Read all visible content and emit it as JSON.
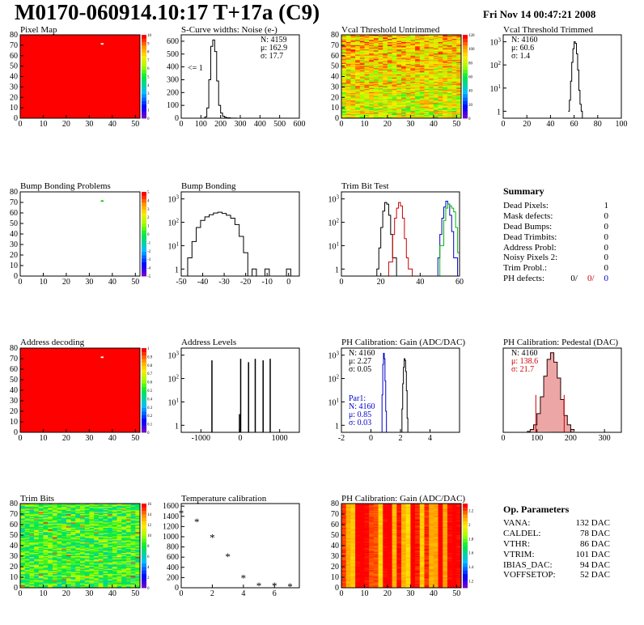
{
  "header": {
    "title": "M0170-060914.10:17 T+17a (C9)",
    "date": "Fri Nov 14 00:47:21 2008"
  },
  "summary": {
    "title": "Summary",
    "rows": [
      {
        "label": "Dead Pixels:",
        "value": "1"
      },
      {
        "label": "Mask defects:",
        "value": "0"
      },
      {
        "label": "Dead Bumps:",
        "value": "0"
      },
      {
        "label": "Dead Trimbits:",
        "value": "0"
      },
      {
        "label": "Address Probl:",
        "value": "0"
      },
      {
        "label": "Noisy Pixels 2:",
        "value": "0"
      },
      {
        "label": "Trim Probl.:",
        "value": "0"
      }
    ],
    "ph_label": "PH defects:",
    "ph_values": [
      {
        "value": "0/",
        "color": "#000000"
      },
      {
        "value": "0/",
        "color": "#cc0000"
      },
      {
        "value": "0",
        "color": "#0000cc"
      }
    ]
  },
  "op_parameters": {
    "title": "Op. Parameters",
    "rows": [
      {
        "label": "VANA:",
        "value": "132 DAC"
      },
      {
        "label": "CALDEL:",
        "value": "78 DAC"
      },
      {
        "label": "VTHR:",
        "value": "86 DAC"
      },
      {
        "label": "VTRIM:",
        "value": "101 DAC"
      },
      {
        "label": "IBIAS_DAC:",
        "value": "94 DAC"
      },
      {
        "label": "VOFFSETOP:",
        "value": "52 DAC"
      }
    ]
  },
  "colors": {
    "hist_black": "#000000",
    "hist_red": "#cc0000",
    "hist_blue": "#0000cc",
    "hist_green": "#00bb00",
    "map_red": "#ff0000",
    "pedestal_fill": "#cc0000"
  },
  "chart_data": [
    {
      "id": "pixel_map",
      "type": "heatmap",
      "title": "Pixel Map",
      "xlim": [
        0,
        52
      ],
      "ylim": [
        0,
        80
      ],
      "x_ticks": [
        0,
        10,
        20,
        30,
        40,
        50
      ],
      "y_ticks": [
        0,
        10,
        20,
        30,
        40,
        50,
        60,
        70,
        80
      ],
      "zlim": [
        0,
        10
      ],
      "z_ticks": [
        0,
        1,
        2,
        3,
        4,
        5,
        6,
        7,
        8,
        9,
        10
      ],
      "uniform_value": 10,
      "pattern": "uniform",
      "outliers": [
        {
          "col": 35,
          "row": 72,
          "value": 0
        }
      ]
    },
    {
      "id": "scurve_noise",
      "type": "line",
      "title": "S-Curve widths: Noise (e-)",
      "xlim": [
        0,
        600
      ],
      "ylim": [
        0,
        650
      ],
      "x_ticks": [
        0,
        100,
        200,
        300,
        400,
        500,
        600
      ],
      "y_ticks": [
        0,
        100,
        200,
        300,
        400,
        500,
        600
      ],
      "log_y": false,
      "stats": [
        "N: 4159",
        "μ: 162.9",
        "σ: 17.7"
      ],
      "annotation": "<= 1",
      "series": [
        {
          "color": "#000000",
          "x": [
            100,
            120,
            130,
            140,
            150,
            160,
            170,
            180,
            190,
            200,
            210,
            220,
            230,
            250,
            270,
            280
          ],
          "y": [
            0,
            10,
            80,
            300,
            560,
            610,
            520,
            290,
            100,
            40,
            15,
            8,
            3,
            1,
            1,
            0
          ]
        }
      ]
    },
    {
      "id": "vcal_untrimmed",
      "type": "heatmap",
      "title": "Vcal Threshold Untrimmed",
      "xlim": [
        0,
        52
      ],
      "ylim": [
        0,
        80
      ],
      "x_ticks": [
        0,
        10,
        20,
        30,
        40,
        50
      ],
      "y_ticks": [
        0,
        10,
        20,
        30,
        40,
        50,
        60,
        70,
        80
      ],
      "zlim": [
        0,
        120
      ],
      "z_ticks": [
        0,
        20,
        40,
        60,
        80,
        100,
        120
      ],
      "pattern": "noisy"
    },
    {
      "id": "vcal_trimmed",
      "type": "line",
      "title": "Vcal Threshold Trimmed",
      "xlim": [
        0,
        100
      ],
      "ylim": [
        0.5,
        2000
      ],
      "x_ticks": [
        0,
        20,
        40,
        60,
        80,
        100
      ],
      "y_ticks": [
        1,
        10,
        100,
        1000
      ],
      "log_y": true,
      "stats": [
        "N: 4160",
        "μ: 60.6",
        "σ: 1.4"
      ],
      "series": [
        {
          "color": "#000000",
          "x": [
            55,
            56,
            57,
            58,
            59,
            60,
            61,
            62,
            63,
            64,
            65,
            66,
            67
          ],
          "y": [
            1,
            3,
            20,
            130,
            500,
            1000,
            850,
            300,
            60,
            8,
            2,
            1,
            0.5
          ]
        }
      ]
    },
    {
      "id": "bump_problems",
      "type": "heatmap",
      "title": "Bump Bonding Problems",
      "xlim": [
        0,
        52
      ],
      "ylim": [
        0,
        80
      ],
      "x_ticks": [
        0,
        10,
        20,
        30,
        40,
        50
      ],
      "y_ticks": [
        0,
        10,
        20,
        30,
        40,
        50,
        60,
        70,
        80
      ],
      "zlim": [
        -5,
        5
      ],
      "z_ticks": [
        -5,
        -4,
        -3,
        -2,
        -1,
        0,
        1,
        2,
        3,
        4,
        5
      ],
      "pattern": "empty",
      "outliers": [
        {
          "col": 35,
          "row": 72,
          "value": 1
        }
      ]
    },
    {
      "id": "bump_bonding",
      "type": "line",
      "title": "Bump Bonding",
      "xlim": [
        -50,
        5
      ],
      "ylim": [
        0.5,
        2000
      ],
      "x_ticks": [
        -50,
        -40,
        -30,
        -20,
        -10,
        0
      ],
      "y_ticks": [
        1,
        10,
        100,
        1000
      ],
      "log_y": true,
      "series": [
        {
          "color": "#000000",
          "x": [
            -49,
            -47,
            -45,
            -43,
            -41,
            -39,
            -37,
            -35,
            -33,
            -31,
            -29,
            -27,
            -25,
            -23,
            -21,
            -19,
            -17,
            -15,
            -13,
            -11,
            -9,
            -7,
            -5,
            -3,
            -1,
            1
          ],
          "y": [
            0.5,
            3,
            15,
            60,
            120,
            170,
            210,
            250,
            270,
            240,
            200,
            150,
            80,
            25,
            5,
            0.5,
            1,
            0.5,
            0.5,
            1,
            0.5,
            0.5,
            0.5,
            0.5,
            1,
            0.5
          ]
        }
      ]
    },
    {
      "id": "trim_bit_test",
      "type": "line",
      "title": "Trim Bit Test",
      "xlim": [
        0,
        60
      ],
      "ylim": [
        0.5,
        2000
      ],
      "x_ticks": [
        0,
        20,
        40,
        60
      ],
      "y_ticks": [
        1,
        10,
        100,
        1000
      ],
      "log_y": true,
      "series": [
        {
          "color": "#000000",
          "x": [
            16,
            18,
            19,
            20,
            21,
            22,
            23,
            24,
            25,
            26,
            28
          ],
          "y": [
            0.5,
            1,
            8,
            60,
            300,
            700,
            600,
            200,
            30,
            3,
            0.5
          ]
        },
        {
          "color": "#cc0000",
          "x": [
            22,
            24,
            26,
            27,
            28,
            29,
            30,
            31,
            32,
            33,
            34,
            36
          ],
          "y": [
            0.5,
            2,
            30,
            150,
            400,
            700,
            500,
            150,
            20,
            3,
            1,
            0.5
          ]
        },
        {
          "color": "#0000cc",
          "x": [
            47,
            49,
            50,
            51,
            52,
            53,
            54,
            55,
            56,
            57,
            59
          ],
          "y": [
            0.5,
            3,
            30,
            150,
            450,
            800,
            600,
            200,
            40,
            3,
            0.5
          ]
        },
        {
          "color": "#00bb00",
          "x": [
            48,
            50,
            52,
            53,
            54,
            55,
            56,
            57,
            58,
            59,
            60
          ],
          "y": [
            0.5,
            10,
            120,
            400,
            600,
            500,
            400,
            280,
            60,
            5,
            0.5
          ]
        }
      ]
    },
    {
      "id": "address_decoding",
      "type": "heatmap",
      "title": "Address decoding",
      "xlim": [
        0,
        52
      ],
      "ylim": [
        0,
        80
      ],
      "x_ticks": [
        0,
        10,
        20,
        30,
        40,
        50
      ],
      "y_ticks": [
        0,
        10,
        20,
        30,
        40,
        50,
        60,
        70,
        80
      ],
      "zlim": [
        0,
        1
      ],
      "z_ticks": [
        0,
        0.1,
        0.2,
        0.3,
        0.4,
        0.5,
        0.6,
        0.7,
        0.8,
        0.9,
        1
      ],
      "uniform_value": 1,
      "pattern": "uniform",
      "outliers": [
        {
          "col": 35,
          "row": 72,
          "value": 0
        }
      ]
    },
    {
      "id": "address_levels",
      "type": "line",
      "title": "Address Levels",
      "xlim": [
        -1500,
        1500
      ],
      "ylim": [
        0.5,
        2000
      ],
      "x_ticks": [
        -1000,
        0,
        1000
      ],
      "y_ticks": [
        1,
        10,
        100,
        1000
      ],
      "log_y": true,
      "spikes": [
        {
          "x": -720,
          "y": 600
        },
        {
          "x": -20,
          "y": 3
        },
        {
          "x": 10,
          "y": 700
        },
        {
          "x": 210,
          "y": 500
        },
        {
          "x": 380,
          "y": 700
        },
        {
          "x": 580,
          "y": 600
        },
        {
          "x": 760,
          "y": 700
        }
      ]
    },
    {
      "id": "ph_gain",
      "type": "line",
      "title": "PH Calibration: Gain (ADC/DAC)",
      "xlim": [
        -2,
        6
      ],
      "ylim": [
        0.5,
        2000
      ],
      "x_ticks": [
        -2,
        0,
        2,
        4
      ],
      "y_ticks": [
        1,
        10,
        100,
        1000
      ],
      "log_y": true,
      "stats": [
        "N: 4160",
        "μ: 2.27",
        "σ: 0.05"
      ],
      "stats_blue": [
        "Par1:",
        "N: 4160",
        "μ: 0.85",
        "σ: 0.03"
      ],
      "series": [
        {
          "color": "#000000",
          "x": [
            2.05,
            2.1,
            2.15,
            2.2,
            2.25,
            2.3,
            2.35,
            2.4,
            2.45,
            2.5
          ],
          "y": [
            0.5,
            5,
            60,
            300,
            700,
            600,
            200,
            30,
            2,
            0.5
          ]
        },
        {
          "color": "#0000cc",
          "x": [
            0.7,
            0.75,
            0.8,
            0.85,
            0.9,
            0.95,
            1.0,
            1.05
          ],
          "y": [
            0.5,
            20,
            400,
            1200,
            700,
            80,
            4,
            0.5
          ]
        }
      ]
    },
    {
      "id": "ph_pedestal",
      "type": "line",
      "title": "PH Calibration: Pedestal (DAC)",
      "xlim": [
        0,
        350
      ],
      "ylim": [
        0,
        90
      ],
      "x_ticks": [
        0,
        100,
        200,
        300
      ],
      "y_ticks": [],
      "log_y": false,
      "stats": [
        "N: 4160"
      ],
      "stats_red": [
        "μ: 138.6",
        "σ: 21.7"
      ],
      "series": [
        {
          "color": "#000000",
          "x": [
            70,
            80,
            90,
            100,
            110,
            120,
            130,
            140,
            150,
            160,
            170,
            180,
            190,
            200,
            210
          ],
          "y": [
            1,
            3,
            8,
            20,
            38,
            60,
            78,
            85,
            75,
            58,
            35,
            18,
            8,
            3,
            1
          ]
        }
      ],
      "markers": [
        {
          "x": 96.6,
          "y": 40
        },
        {
          "x": 180.6,
          "y": 40
        }
      ]
    },
    {
      "id": "trim_bits",
      "type": "heatmap",
      "title": "Trim Bits",
      "xlim": [
        0,
        52
      ],
      "ylim": [
        0,
        80
      ],
      "x_ticks": [
        0,
        10,
        20,
        30,
        40,
        50
      ],
      "y_ticks": [
        0,
        10,
        20,
        30,
        40,
        50,
        60,
        70,
        80
      ],
      "zlim": [
        0,
        16
      ],
      "z_ticks": [
        0,
        2,
        4,
        6,
        8,
        10,
        12,
        14,
        16
      ],
      "pattern": "green_noise"
    },
    {
      "id": "temp_calibration",
      "type": "scatter",
      "title": "Temperature calibration",
      "xlim": [
        0,
        7.6
      ],
      "ylim": [
        0,
        1650
      ],
      "x_ticks": [
        0,
        2,
        4,
        6
      ],
      "y_ticks": [
        0,
        200,
        400,
        600,
        800,
        1000,
        1200,
        1400,
        1600
      ],
      "log_y": false,
      "x": [
        0,
        1,
        2,
        3,
        4,
        5,
        6,
        7
      ],
      "y": [
        1470,
        1300,
        990,
        620,
        200,
        50,
        50,
        30
      ]
    },
    {
      "id": "ph_gain_map",
      "type": "heatmap",
      "title": "PH Calibration: Gain (ADC/DAC)",
      "xlim": [
        0,
        52
      ],
      "ylim": [
        0,
        80
      ],
      "x_ticks": [
        0,
        10,
        20,
        30,
        40,
        50
      ],
      "y_ticks": [
        0,
        10,
        20,
        30,
        40,
        50,
        60,
        70,
        80
      ],
      "zlim": [
        1.1,
        2.3
      ],
      "z_ticks": [
        1.2,
        1.4,
        1.6,
        1.8,
        2,
        2.2
      ],
      "pattern": "columns"
    }
  ]
}
